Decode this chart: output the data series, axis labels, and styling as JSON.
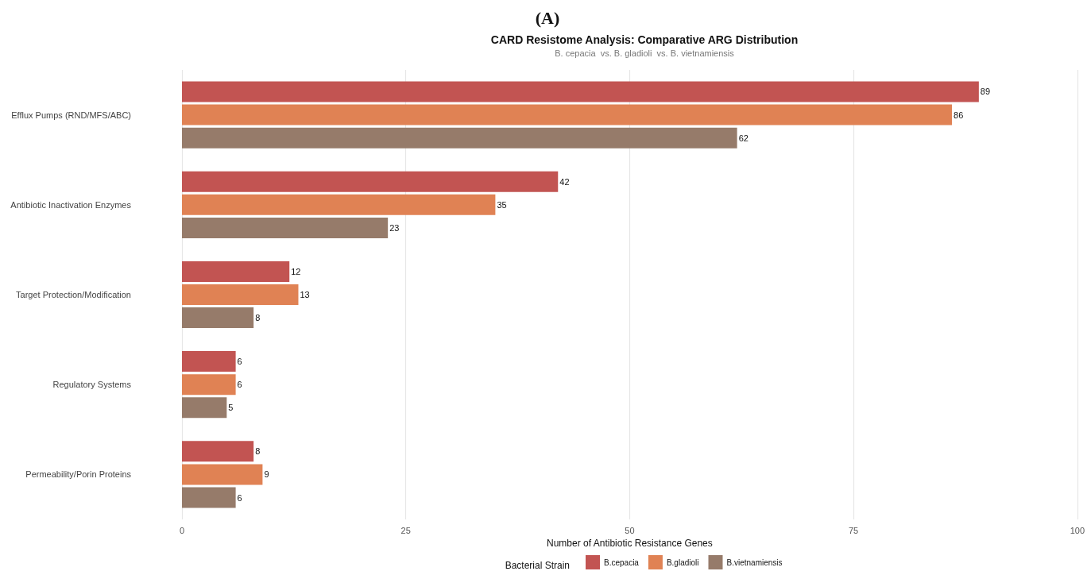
{
  "chart_data": {
    "type": "bar",
    "orientation": "horizontal",
    "title": "CARD Resistome Analysis: Comparative ARG Distribution",
    "subtitle": "B. cepacia  vs. B. gladioli  vs. B. vietnamiensis",
    "annotations": [
      "(A)"
    ],
    "xlabel": "Number of Antibiotic Resistance Genes",
    "legend_title": "Bacterial Strain",
    "categories": [
      "Efflux Pumps (RND/MFS/ABC)",
      "Antibiotic Inactivation Enzymes",
      "Target Protection/Modification",
      "Regulatory Systems",
      "Permeability/Porin Proteins"
    ],
    "series": [
      {
        "name": "B.cepacia",
        "color": "#c25452",
        "values": [
          89,
          42,
          12,
          6,
          8
        ]
      },
      {
        "name": "B.gladioli",
        "color": "#e08254",
        "values": [
          86,
          35,
          13,
          6,
          9
        ]
      },
      {
        "name": "B.vietnamiensis",
        "color": "#967b6a",
        "values": [
          62,
          23,
          8,
          5,
          6
        ]
      }
    ],
    "xlim": [
      0,
      100
    ],
    "xticks": [
      0,
      25,
      50,
      75,
      100
    ],
    "grid": "x",
    "legend": "bottom",
    "data_labels": true
  }
}
